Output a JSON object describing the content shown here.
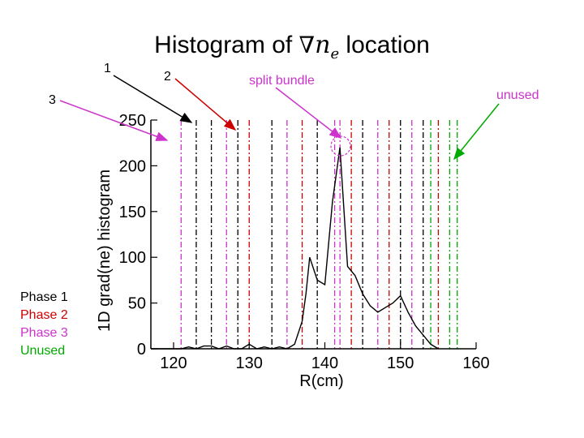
{
  "title": {
    "prefix": "Histogram of ",
    "symbol": "∇",
    "variable": "n",
    "subscript": "e",
    "suffix": " location"
  },
  "annotations": [
    {
      "id": "ann-1",
      "text": "1",
      "color": "#000000"
    },
    {
      "id": "ann-2",
      "text": "2",
      "color": "#000000"
    },
    {
      "id": "ann-3",
      "text": "3",
      "color": "#000000"
    },
    {
      "id": "ann-split",
      "text": "split bundle",
      "color": "#cc33cc"
    },
    {
      "id": "ann-unused",
      "text": "unused",
      "color": "#cc33cc"
    }
  ],
  "legend": [
    {
      "label": "Phase 1",
      "color": "#000000"
    },
    {
      "label": "Phase 2",
      "color": "#cc0000"
    },
    {
      "label": "Phase 3",
      "color": "#cc33cc"
    },
    {
      "label": "Unused",
      "color": "#00aa00"
    }
  ],
  "chart_data": {
    "type": "line",
    "xlabel": "R(cm)",
    "ylabel": "1D grad(ne) histogram",
    "xlim": [
      117,
      160
    ],
    "ylim": [
      0,
      250
    ],
    "xticks": [
      "120",
      "130",
      "140",
      "150",
      "160"
    ],
    "yticks": [
      "0",
      "50",
      "100",
      "150",
      "200",
      "250"
    ],
    "grid": false,
    "series": [
      {
        "x": [
          117,
          119,
          121,
          122,
          123,
          124,
          125,
          126,
          127,
          128,
          129,
          130,
          131,
          132,
          133,
          134,
          135,
          136,
          137,
          137.5,
          138,
          139,
          140,
          141,
          142,
          143,
          144,
          145,
          146,
          147,
          148,
          149,
          150,
          151,
          152,
          153,
          154,
          155
        ],
        "y": [
          0,
          0,
          0,
          2,
          0,
          3,
          3,
          0,
          3,
          0,
          0,
          5,
          0,
          2,
          0,
          2,
          0,
          5,
          30,
          60,
          100,
          75,
          70,
          160,
          220,
          90,
          80,
          60,
          47,
          40,
          45,
          50,
          58,
          40,
          25,
          15,
          5,
          0
        ],
        "color": "#000000"
      }
    ],
    "marker_lines": [
      {
        "x": 121,
        "color": "#cc33cc"
      },
      {
        "x": 123,
        "color": "#000000"
      },
      {
        "x": 125,
        "color": "#000000"
      },
      {
        "x": 127,
        "color": "#cc33cc"
      },
      {
        "x": 128.5,
        "color": "#000000"
      },
      {
        "x": 130,
        "color": "#cc0000"
      },
      {
        "x": 133,
        "color": "#000000"
      },
      {
        "x": 135,
        "color": "#cc33cc"
      },
      {
        "x": 137,
        "color": "#cc0000"
      },
      {
        "x": 139,
        "color": "#000000"
      },
      {
        "x": 141.3,
        "color": "#cc33cc"
      },
      {
        "x": 142,
        "color": "#cc33cc"
      },
      {
        "x": 143.5,
        "color": "#cc0000"
      },
      {
        "x": 145,
        "color": "#000000"
      },
      {
        "x": 147,
        "color": "#cc33cc"
      },
      {
        "x": 148.5,
        "color": "#cc0000"
      },
      {
        "x": 150,
        "color": "#000000"
      },
      {
        "x": 151.5,
        "color": "#cc33cc"
      },
      {
        "x": 153,
        "color": "#000000"
      },
      {
        "x": 154,
        "color": "#00aa00"
      },
      {
        "x": 155,
        "color": "#cc0000"
      },
      {
        "x": 156.5,
        "color": "#00aa00"
      },
      {
        "x": 157.5,
        "color": "#00aa00"
      }
    ]
  }
}
